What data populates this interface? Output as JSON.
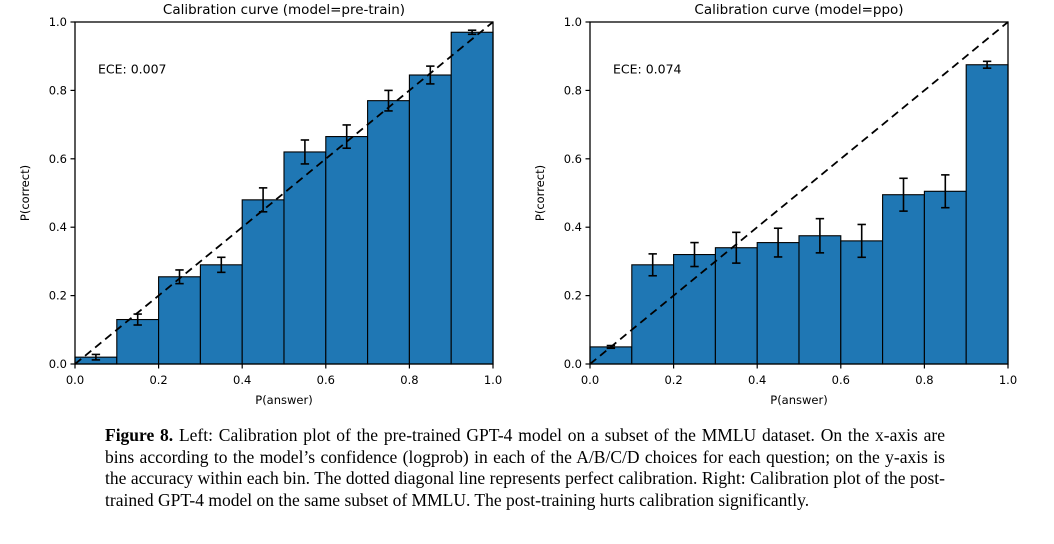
{
  "caption": {
    "label": "Figure 8.",
    "text": " Left: Calibration plot of the pre-trained GPT-4 model on a subset of the MMLU dataset. On the x-axis are bins according to the model’s confidence (logprob) in each of the A/B/C/D choices for each question; on the y-axis is the accuracy within each bin. The dotted diagonal line represents perfect calibration. Right: Calibration plot of the post-trained GPT-4 model on the same subset of MMLU. The post-training hurts calibration significantly."
  },
  "style": {
    "bar_color": "#1f77b4",
    "bar_edge_color": "#000000",
    "errorbar_color": "#000000",
    "diagonal_color": "#000000",
    "spine_color": "#000000",
    "background": "#ffffff"
  },
  "chart_data": [
    {
      "type": "bar",
      "title": "Calibration curve (model=pre-train)",
      "xlabel": "P(answer)",
      "ylabel": "P(correct)",
      "annotation": "ECE: 0.007",
      "xlim": [
        0.0,
        1.0
      ],
      "ylim": [
        0.0,
        1.0
      ],
      "xticks": [
        0.0,
        0.2,
        0.4,
        0.6,
        0.8,
        1.0
      ],
      "yticks": [
        0.0,
        0.2,
        0.4,
        0.6,
        0.8,
        1.0
      ],
      "grid": false,
      "legend": null,
      "diagonal": {
        "from": [
          0.0,
          0.0
        ],
        "to": [
          1.0,
          1.0
        ],
        "style": "dashed",
        "meaning": "perfect calibration"
      },
      "bin_edges": [
        0.0,
        0.1,
        0.2,
        0.3,
        0.4,
        0.5,
        0.6,
        0.7,
        0.8,
        0.9,
        1.0
      ],
      "values": [
        0.02,
        0.13,
        0.255,
        0.29,
        0.48,
        0.62,
        0.665,
        0.77,
        0.845,
        0.97
      ],
      "errors": [
        0.008,
        0.016,
        0.02,
        0.022,
        0.035,
        0.035,
        0.034,
        0.03,
        0.026,
        0.006
      ]
    },
    {
      "type": "bar",
      "title": "Calibration curve (model=ppo)",
      "xlabel": "P(answer)",
      "ylabel": "P(correct)",
      "annotation": "ECE: 0.074",
      "xlim": [
        0.0,
        1.0
      ],
      "ylim": [
        0.0,
        1.0
      ],
      "xticks": [
        0.0,
        0.2,
        0.4,
        0.6,
        0.8,
        1.0
      ],
      "yticks": [
        0.0,
        0.2,
        0.4,
        0.6,
        0.8,
        1.0
      ],
      "grid": false,
      "legend": null,
      "diagonal": {
        "from": [
          0.0,
          0.0
        ],
        "to": [
          1.0,
          1.0
        ],
        "style": "dashed",
        "meaning": "perfect calibration"
      },
      "bin_edges": [
        0.0,
        0.1,
        0.2,
        0.3,
        0.4,
        0.5,
        0.6,
        0.7,
        0.8,
        0.9,
        1.0
      ],
      "values": [
        0.05,
        0.29,
        0.32,
        0.34,
        0.355,
        0.375,
        0.36,
        0.495,
        0.505,
        0.875
      ],
      "errors": [
        0.004,
        0.032,
        0.035,
        0.045,
        0.042,
        0.05,
        0.048,
        0.048,
        0.048,
        0.01
      ]
    }
  ]
}
